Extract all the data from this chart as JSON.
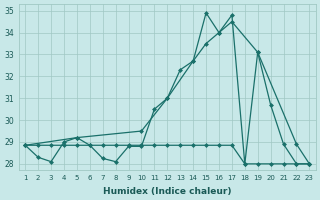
{
  "xlabel": "Humidex (Indice chaleur)",
  "bg_color": "#c8e8e8",
  "grid_color": "#a0c8c4",
  "line_color": "#1a706a",
  "xlim": [
    0.5,
    23.5
  ],
  "ylim": [
    27.7,
    35.3
  ],
  "xticks": [
    1,
    2,
    3,
    4,
    5,
    6,
    7,
    8,
    9,
    10,
    11,
    12,
    13,
    14,
    15,
    16,
    17,
    18,
    19,
    20,
    21,
    22,
    23
  ],
  "yticks": [
    28,
    29,
    30,
    31,
    32,
    33,
    34,
    35
  ],
  "line1_x": [
    1,
    2,
    3,
    4,
    5,
    6,
    7,
    8,
    9,
    10,
    11,
    12,
    13,
    14,
    15,
    16,
    17,
    18,
    19,
    20,
    21,
    22,
    23
  ],
  "line1_y": [
    28.85,
    28.3,
    28.1,
    29.0,
    29.2,
    28.85,
    28.25,
    28.1,
    28.8,
    28.8,
    30.5,
    31.0,
    32.3,
    32.7,
    34.9,
    34.0,
    34.8,
    28.0,
    33.1,
    30.7,
    28.9,
    28.0,
    28.0
  ],
  "line2_x": [
    1,
    5,
    10,
    12,
    14,
    15,
    16,
    17,
    19,
    22,
    23
  ],
  "line2_y": [
    28.85,
    29.2,
    29.5,
    31.0,
    32.7,
    33.5,
    34.0,
    34.5,
    33.1,
    28.9,
    28.0
  ],
  "line3_x": [
    1,
    2,
    3,
    4,
    5,
    6,
    7,
    8,
    9,
    10,
    11,
    12,
    13,
    14,
    15,
    16,
    17,
    18,
    19,
    20,
    21,
    22,
    23
  ],
  "line3_y": [
    28.85,
    28.85,
    28.85,
    28.85,
    28.85,
    28.85,
    28.85,
    28.85,
    28.85,
    28.85,
    28.85,
    28.85,
    28.85,
    28.85,
    28.85,
    28.85,
    28.85,
    28.0,
    28.0,
    28.0,
    28.0,
    28.0,
    28.0
  ],
  "markersize": 2.5
}
